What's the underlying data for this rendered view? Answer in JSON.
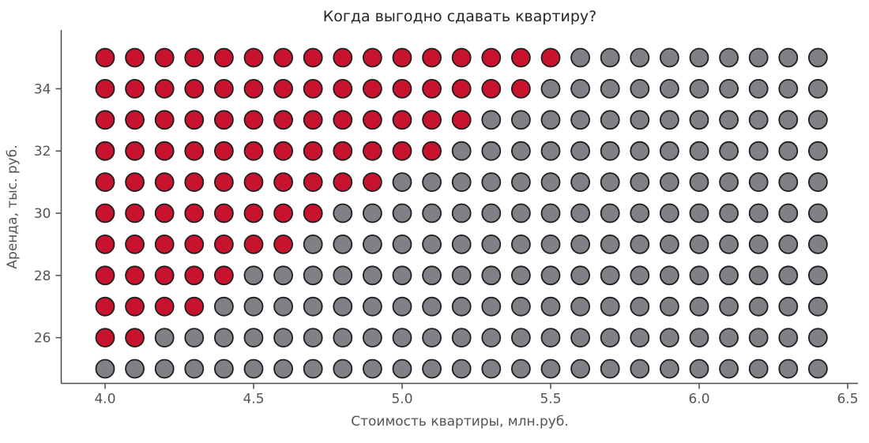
{
  "chart_data": {
    "type": "scatter",
    "title": "Когда выгодно сдавать квартиру?",
    "xlabel": "Стоимость квартиры, млн.руб.",
    "ylabel": "Аренда, тыс. руб.",
    "x_start": 4.0,
    "x_step": 0.1,
    "x_count": 25,
    "x_range_shown": [
      4.0,
      6.4
    ],
    "x_ticks": [
      4.0,
      4.5,
      5.0,
      5.5,
      6.0,
      6.5
    ],
    "x_tick_labels": [
      "4.0",
      "4.5",
      "5.0",
      "5.5",
      "6.0",
      "6.5"
    ],
    "y_ticks": [
      26,
      28,
      30,
      32,
      34
    ],
    "y_tick_labels": [
      "26",
      "28",
      "30",
      "32",
      "34"
    ],
    "grid": false,
    "legend": null,
    "rows": [
      {
        "rent": 35,
        "profitable_through": 5.5,
        "profitable_count": 16
      },
      {
        "rent": 34,
        "profitable_through": 5.4,
        "profitable_count": 15
      },
      {
        "rent": 33,
        "profitable_through": 5.2,
        "profitable_count": 13
      },
      {
        "rent": 32,
        "profitable_through": 5.1,
        "profitable_count": 12
      },
      {
        "rent": 31,
        "profitable_through": 4.9,
        "profitable_count": 10
      },
      {
        "rent": 30,
        "profitable_through": 4.7,
        "profitable_count": 8
      },
      {
        "rent": 29,
        "profitable_through": 4.6,
        "profitable_count": 7
      },
      {
        "rent": 28,
        "profitable_through": 4.4,
        "profitable_count": 5
      },
      {
        "rent": 27,
        "profitable_through": 4.3,
        "profitable_count": 4
      },
      {
        "rent": 26,
        "profitable_through": 4.1,
        "profitable_count": 2
      },
      {
        "rent": 25,
        "profitable_through": null,
        "profitable_count": 0
      }
    ],
    "colors": {
      "profitable": "#c7132e",
      "unprofitable": "#808186",
      "dot_edge": "#1f1f1f",
      "axis": "#4d4d4d",
      "tick_label": "#555555",
      "title": "#262626"
    }
  }
}
